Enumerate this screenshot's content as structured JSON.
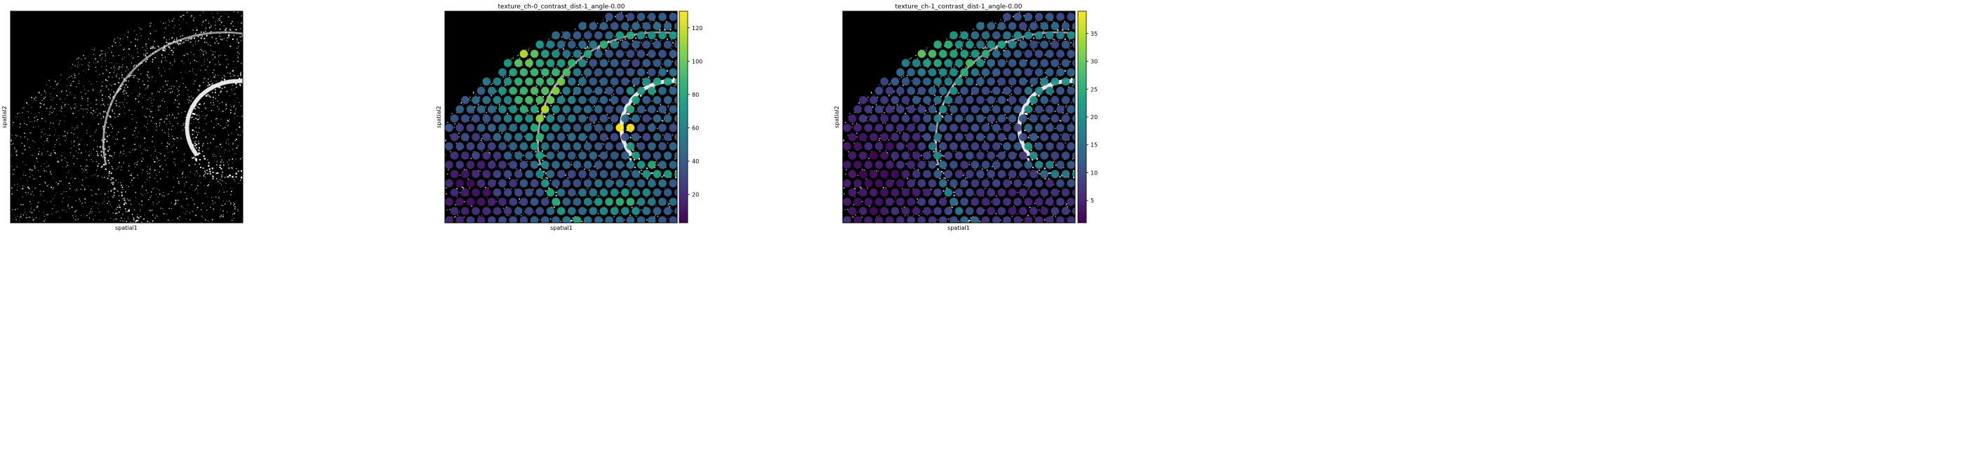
{
  "figure": {
    "panels": [
      {
        "title": "",
        "xlabel": "spatial1",
        "ylabel": "spatial2"
      },
      {
        "title": "texture_ch-0_contrast_dist-1_angle-0.00",
        "xlabel": "spatial1",
        "ylabel": "spatial2"
      },
      {
        "title": "texture_ch-1_contrast_dist-1_angle-0.00",
        "xlabel": "spatial1",
        "ylabel": "spatial2"
      }
    ]
  },
  "colors": {
    "viridis": [
      "#440154",
      "#482878",
      "#3e4989",
      "#31688e",
      "#26828e",
      "#1f9e89",
      "#35b779",
      "#6ece58",
      "#b5de2b",
      "#fde725"
    ],
    "background": "#000000",
    "tissue_speckle": "#d9d9d9"
  },
  "chart_data": [
    {
      "type": "image",
      "description_of_content": "grayscale brain tissue section (hippocampus)",
      "xlabel": "spatial1",
      "ylabel": "spatial2"
    },
    {
      "type": "scatter",
      "title": "texture_ch-0_contrast_dist-1_angle-0.00",
      "xlabel": "spatial1",
      "ylabel": "spatial2",
      "colormap": "viridis",
      "colorbar": {
        "min": 3,
        "max": 130,
        "ticks": [
          20,
          40,
          60,
          80,
          100,
          120
        ]
      },
      "regions": [
        {
          "name": "background",
          "value": 35
        },
        {
          "name": "upper-left hotspot",
          "value": 85
        },
        {
          "name": "upper-left peak",
          "value": 115
        },
        {
          "name": "mid-left band",
          "value": 90
        },
        {
          "name": "hippocampal layer",
          "value": 80
        },
        {
          "name": "hippocampal peak",
          "value": 128
        },
        {
          "name": "lower-left region",
          "value": 15
        },
        {
          "name": "bottom hotspot",
          "value": 90
        }
      ]
    },
    {
      "type": "scatter",
      "title": "texture_ch-1_contrast_dist-1_angle-0.00",
      "xlabel": "spatial1",
      "ylabel": "spatial2",
      "colormap": "viridis",
      "colorbar": {
        "min": 1,
        "max": 39,
        "ticks": [
          5,
          10,
          15,
          20,
          25,
          30,
          35
        ]
      },
      "regions": [
        {
          "name": "background",
          "value": 12
        },
        {
          "name": "upper-left hotspot",
          "value": 26
        },
        {
          "name": "upper-left peak",
          "value": 38
        },
        {
          "name": "hippocampal layer",
          "value": 20
        },
        {
          "name": "lower region",
          "value": 4
        }
      ]
    }
  ]
}
